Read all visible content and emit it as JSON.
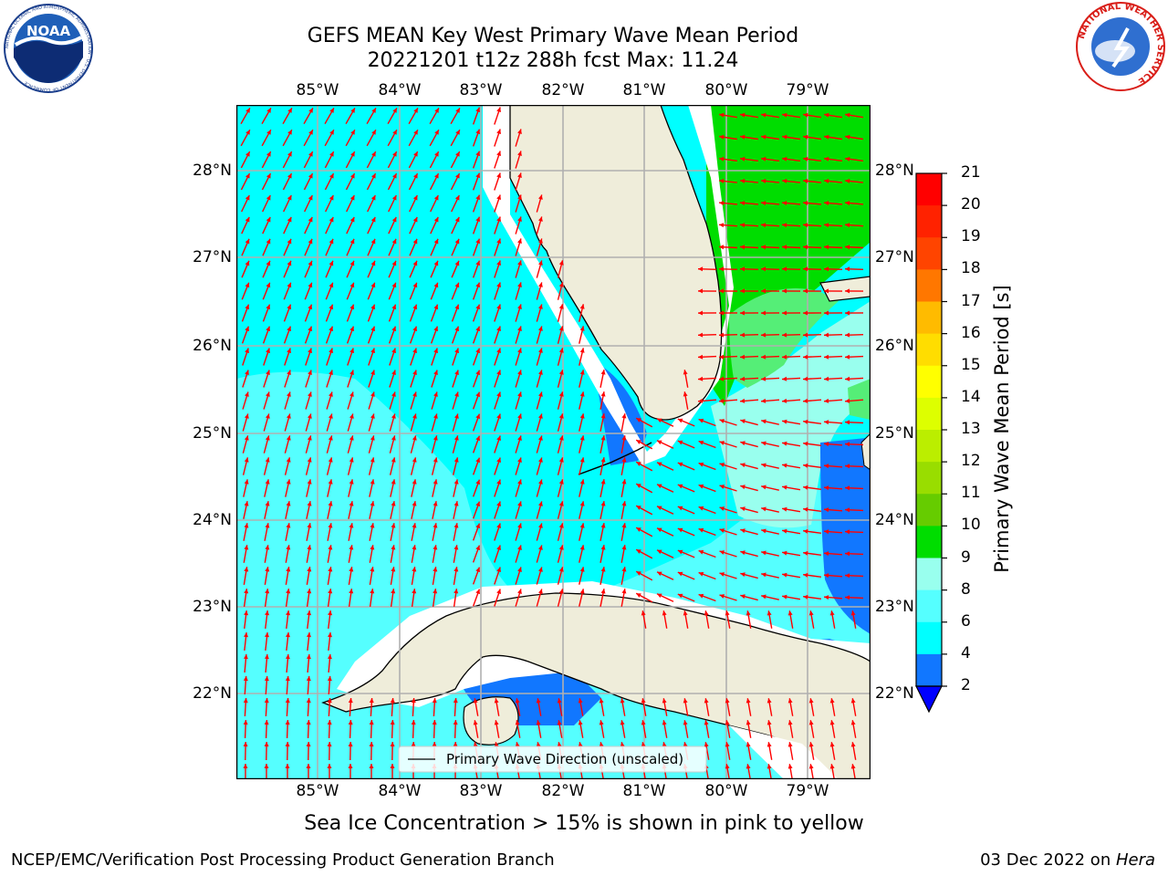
{
  "title": {
    "line1": "GEFS MEAN Key West Primary Wave Mean Period",
    "line2": "20221201 t12z 288h fcst   Max: 11.24"
  },
  "logos": {
    "noaa": {
      "text": "NOAA",
      "ring_text": "NATIONAL OCEANIC AND ATMOSPHERIC ADMINISTRATION · U.S. DEPARTMENT OF COMMERCE"
    },
    "nws": {
      "ring_text": "NATIONAL WEATHER SERVICE"
    }
  },
  "map": {
    "lon_labels": [
      "85°W",
      "84°W",
      "83°W",
      "82°W",
      "81°W",
      "80°W",
      "79°W"
    ],
    "lat_labels": [
      "28°N",
      "27°N",
      "26°N",
      "25°N",
      "24°N",
      "23°N",
      "22°N"
    ],
    "legend_label": "Primary Wave Direction (unscaled)",
    "colors": {
      "land": "#efedda",
      "coast": "#000000",
      "grid": "#b0b0b0",
      "arrow": "#ff0000"
    }
  },
  "colorbar": {
    "label": "Primary Wave Mean Period [s]",
    "ticks": [
      "2",
      "4",
      "6",
      "8",
      "9",
      "10",
      "11",
      "12",
      "13",
      "14",
      "15",
      "16",
      "17",
      "18",
      "19",
      "20",
      "21"
    ],
    "colors": [
      "#ff0000",
      "#ff2200",
      "#ff4400",
      "#ff7700",
      "#ff9900",
      "#ffbb00",
      "#ffdd00",
      "#ffff00",
      "#ddff00",
      "#bbee00",
      "#99dd00",
      "#66cc00",
      "#00dd00",
      "#55ee77",
      "#99ffee",
      "#55ffff",
      "#00ffff",
      "#1177ff"
    ],
    "extend_color": "#0000ff"
  },
  "caption": "Sea Ice Concentration > 15% is shown in pink to yellow",
  "footer": {
    "left": "NCEP/EMC/Verification Post Processing Product Generation Branch",
    "right_prefix": "03 Dec 2022 on ",
    "right_italic": "Hera"
  }
}
